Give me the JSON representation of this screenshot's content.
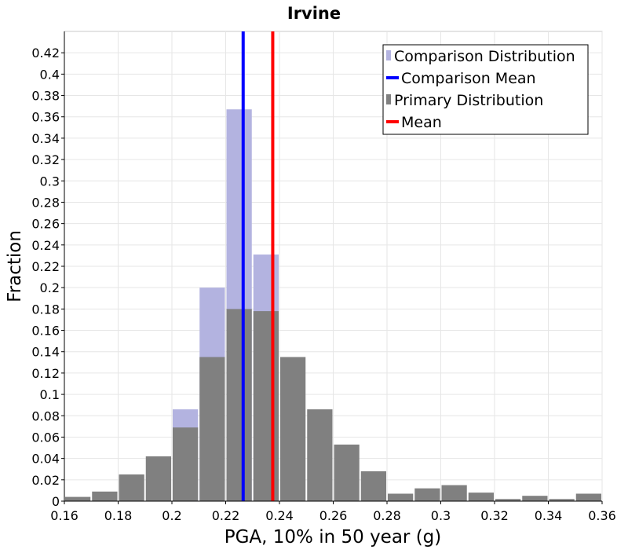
{
  "chart_data": {
    "type": "bar",
    "title": "Irvine",
    "xlabel": "PGA, 10% in 50 year (g)",
    "ylabel": "Fraction",
    "xlim": [
      0.16,
      0.36
    ],
    "ylim": [
      0,
      0.44
    ],
    "bin_width": 0.01,
    "grid": true,
    "legend_position": "top-right",
    "x_ticks": [
      {
        "value": 0.16,
        "label": "0.16"
      },
      {
        "value": 0.18,
        "label": "0.18"
      },
      {
        "value": 0.2,
        "label": "0.2"
      },
      {
        "value": 0.22,
        "label": "0.22"
      },
      {
        "value": 0.24,
        "label": "0.24"
      },
      {
        "value": 0.26,
        "label": "0.26"
      },
      {
        "value": 0.28,
        "label": "0.28"
      },
      {
        "value": 0.3,
        "label": "0.3"
      },
      {
        "value": 0.32,
        "label": "0.32"
      },
      {
        "value": 0.34,
        "label": "0.34"
      },
      {
        "value": 0.36,
        "label": "0.36"
      }
    ],
    "y_ticks": [
      {
        "value": 0,
        "label": "0"
      },
      {
        "value": 0.02,
        "label": "0.02"
      },
      {
        "value": 0.04,
        "label": "0.04"
      },
      {
        "value": 0.06,
        "label": "0.06"
      },
      {
        "value": 0.08,
        "label": "0.08"
      },
      {
        "value": 0.1,
        "label": "0.1"
      },
      {
        "value": 0.12,
        "label": "0.12"
      },
      {
        "value": 0.14,
        "label": "0.14"
      },
      {
        "value": 0.16,
        "label": "0.16"
      },
      {
        "value": 0.18,
        "label": "0.18"
      },
      {
        "value": 0.2,
        "label": "0.2"
      },
      {
        "value": 0.22,
        "label": "0.22"
      },
      {
        "value": 0.24,
        "label": "0.24"
      },
      {
        "value": 0.26,
        "label": "0.26"
      },
      {
        "value": 0.28,
        "label": "0.28"
      },
      {
        "value": 0.3,
        "label": "0.3"
      },
      {
        "value": 0.32,
        "label": "0.32"
      },
      {
        "value": 0.34,
        "label": "0.34"
      },
      {
        "value": 0.36,
        "label": "0.36"
      },
      {
        "value": 0.38,
        "label": "0.38"
      },
      {
        "value": 0.4,
        "label": "0.4"
      },
      {
        "value": 0.42,
        "label": "0.42"
      }
    ],
    "series": [
      {
        "name": "Comparison Distribution",
        "kind": "histogram",
        "color": "#b3b3e0",
        "bins": [
          {
            "x": 0.205,
            "value": 0.086
          },
          {
            "x": 0.215,
            "value": 0.2
          },
          {
            "x": 0.225,
            "value": 0.367
          },
          {
            "x": 0.235,
            "value": 0.231
          }
        ]
      },
      {
        "name": "Comparison Mean",
        "kind": "vline",
        "color": "#0000ff",
        "x": 0.2265
      },
      {
        "name": "Primary Distribution",
        "kind": "histogram",
        "color": "#808080",
        "bins": [
          {
            "x": 0.165,
            "value": 0.004
          },
          {
            "x": 0.175,
            "value": 0.009
          },
          {
            "x": 0.185,
            "value": 0.025
          },
          {
            "x": 0.195,
            "value": 0.042
          },
          {
            "x": 0.205,
            "value": 0.069
          },
          {
            "x": 0.215,
            "value": 0.135
          },
          {
            "x": 0.225,
            "value": 0.18
          },
          {
            "x": 0.235,
            "value": 0.178
          },
          {
            "x": 0.245,
            "value": 0.135
          },
          {
            "x": 0.255,
            "value": 0.086
          },
          {
            "x": 0.265,
            "value": 0.053
          },
          {
            "x": 0.275,
            "value": 0.028
          },
          {
            "x": 0.285,
            "value": 0.007
          },
          {
            "x": 0.295,
            "value": 0.012
          },
          {
            "x": 0.305,
            "value": 0.015
          },
          {
            "x": 0.315,
            "value": 0.008
          },
          {
            "x": 0.325,
            "value": 0.002
          },
          {
            "x": 0.335,
            "value": 0.005
          },
          {
            "x": 0.345,
            "value": 0.002
          },
          {
            "x": 0.355,
            "value": 0.007
          }
        ]
      },
      {
        "name": "Mean",
        "kind": "vline",
        "color": "#ff0000",
        "x": 0.2375
      }
    ]
  }
}
